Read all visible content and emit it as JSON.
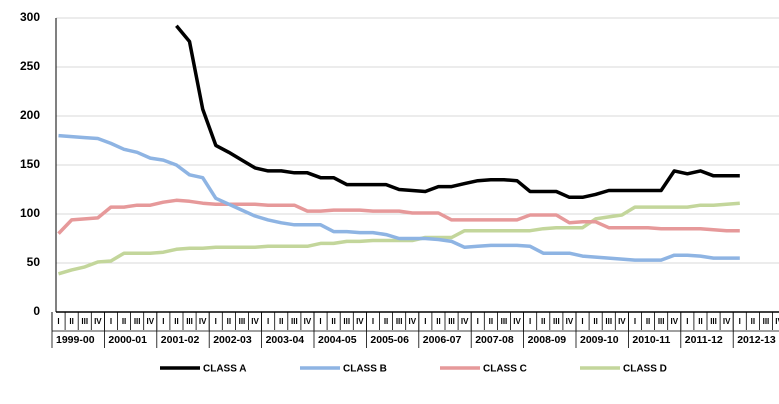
{
  "chart_data": {
    "type": "line",
    "categories": [
      "I",
      "II",
      "III",
      "IV",
      "I",
      "II",
      "III",
      "IV",
      "I",
      "II",
      "III",
      "IV",
      "I",
      "II",
      "III",
      "IV",
      "I",
      "II",
      "III",
      "IV",
      "I",
      "II",
      "III",
      "IV",
      "I",
      "II",
      "III",
      "IV",
      "I",
      "II",
      "III",
      "IV",
      "I",
      "II",
      "III",
      "IV",
      "I",
      "II",
      "III",
      "IV",
      "I",
      "II",
      "III",
      "IV",
      "I",
      "II",
      "III",
      "IV",
      "I",
      "II",
      "III",
      "IV",
      "I",
      "II",
      "III",
      "IV"
    ],
    "category_groups": [
      "1999-00",
      "2000-01",
      "2001-02",
      "2002-03",
      "2003-04",
      "2004-05",
      "2005-06",
      "2006-07",
      "2007-08",
      "2008-09",
      "2009-10",
      "2010-11",
      "2011-12",
      "2012-13"
    ],
    "series": [
      {
        "name": "CLASS A",
        "color": "#000000",
        "values": [
          null,
          null,
          null,
          null,
          null,
          null,
          null,
          null,
          null,
          292,
          276,
          207,
          170,
          163,
          155,
          147,
          144,
          144,
          142,
          142,
          137,
          137,
          130,
          130,
          130,
          130,
          125,
          124,
          123,
          128,
          128,
          131,
          134,
          135,
          135,
          134,
          123,
          123,
          123,
          117,
          117,
          120,
          124,
          124,
          124,
          124,
          124,
          144,
          141,
          144,
          139,
          139,
          139,
          null,
          null,
          null
        ]
      },
      {
        "name": "CLASS B",
        "color": "#8eb4e3",
        "values": [
          180,
          179,
          178,
          177,
          172,
          166,
          163,
          157,
          155,
          150,
          140,
          137,
          116,
          110,
          104,
          98,
          94,
          91,
          89,
          89,
          89,
          82,
          82,
          81,
          81,
          79,
          75,
          75,
          75,
          74,
          72,
          66,
          67,
          68,
          68,
          68,
          67,
          60,
          60,
          60,
          57,
          56,
          55,
          54,
          53,
          53,
          53,
          58,
          58,
          57,
          55,
          55,
          55,
          null,
          null,
          null
        ]
      },
      {
        "name": "CLASS C",
        "color": "#e6999a",
        "values": [
          80,
          94,
          95,
          96,
          107,
          107,
          109,
          109,
          112,
          114,
          113,
          111,
          110,
          110,
          110,
          110,
          109,
          109,
          109,
          103,
          103,
          104,
          104,
          104,
          103,
          103,
          103,
          101,
          101,
          101,
          94,
          94,
          94,
          94,
          94,
          94,
          99,
          99,
          99,
          91,
          92,
          92,
          86,
          86,
          86,
          86,
          85,
          85,
          85,
          85,
          84,
          83,
          83,
          null,
          null,
          null
        ]
      },
      {
        "name": "CLASS D",
        "color": "#c3d69b",
        "values": [
          39,
          43,
          46,
          51,
          52,
          60,
          60,
          60,
          61,
          64,
          65,
          65,
          66,
          66,
          66,
          66,
          67,
          67,
          67,
          67,
          70,
          70,
          72,
          72,
          73,
          73,
          73,
          73,
          76,
          76,
          76,
          83,
          83,
          83,
          83,
          83,
          83,
          85,
          86,
          86,
          86,
          95,
          97,
          99,
          107,
          107,
          107,
          107,
          107,
          109,
          109,
          110,
          111,
          null,
          null,
          null
        ]
      }
    ],
    "ylim": [
      0,
      300
    ],
    "yticks": [
      0,
      50,
      100,
      150,
      200,
      250,
      300
    ],
    "grid": true,
    "legend": "bottom"
  }
}
